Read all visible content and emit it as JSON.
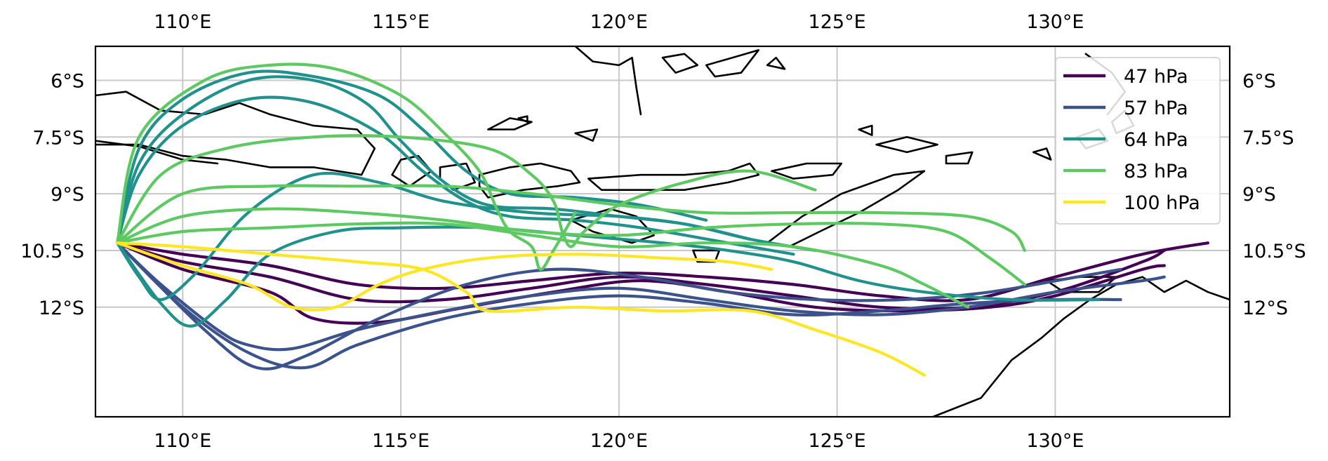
{
  "chart_data": {
    "type": "line",
    "map_extent": {
      "lon": [
        108.0,
        134.0
      ],
      "lat": [
        -14.9,
        -5.1
      ]
    },
    "grid": true,
    "legend_position": "top-right",
    "x_ticks": [
      {
        "value": 110,
        "label": "110°E"
      },
      {
        "value": 115,
        "label": "115°E"
      },
      {
        "value": 120,
        "label": "120°E"
      },
      {
        "value": 125,
        "label": "125°E"
      },
      {
        "value": 130,
        "label": "130°E"
      }
    ],
    "y_ticks": [
      {
        "value": -6.0,
        "label": "6°S"
      },
      {
        "value": -7.5,
        "label": "7.5°S"
      },
      {
        "value": -9.0,
        "label": "9°S"
      },
      {
        "value": -10.5,
        "label": "10.5°S"
      },
      {
        "value": -12.0,
        "label": "12°S"
      }
    ],
    "series": [
      {
        "name": "47 hPa",
        "color": "#440154",
        "trajectories": [
          [
            [
              108.5,
              -10.3
            ],
            [
              110,
              -10.6
            ],
            [
              112,
              -10.9
            ],
            [
              114,
              -11.4
            ],
            [
              116,
              -11.5
            ],
            [
              118,
              -11.3
            ],
            [
              120,
              -11.1
            ],
            [
              122,
              -11.2
            ],
            [
              124,
              -11.4
            ],
            [
              126,
              -11.7
            ],
            [
              128,
              -11.8
            ],
            [
              130,
              -11.2
            ],
            [
              132,
              -10.6
            ],
            [
              133.5,
              -10.3
            ]
          ],
          [
            [
              108.5,
              -10.3
            ],
            [
              110,
              -10.8
            ],
            [
              112,
              -11.2
            ],
            [
              114,
              -11.8
            ],
            [
              116,
              -11.8
            ],
            [
              118,
              -11.5
            ],
            [
              120,
              -11.2
            ],
            [
              122,
              -11.4
            ],
            [
              124,
              -11.7
            ],
            [
              126,
              -12.0
            ],
            [
              128,
              -12.0
            ],
            [
              130,
              -11.6
            ],
            [
              132,
              -10.8
            ],
            [
              132.5,
              -10.5
            ]
          ],
          [
            [
              108.5,
              -10.3
            ],
            [
              110,
              -11.0
            ],
            [
              112,
              -11.6
            ],
            [
              113,
              -12.3
            ],
            [
              114.5,
              -12.4
            ],
            [
              116.5,
              -12.0
            ],
            [
              118.5,
              -11.6
            ],
            [
              120.5,
              -11.3
            ],
            [
              122.5,
              -11.6
            ],
            [
              124.5,
              -12.0
            ],
            [
              126.5,
              -12.1
            ],
            [
              128.5,
              -12.0
            ],
            [
              130,
              -11.7
            ],
            [
              132,
              -11.0
            ],
            [
              132.5,
              -10.9
            ]
          ]
        ]
      },
      {
        "name": "57 hPa",
        "color": "#3b528b",
        "trajectories": [
          [
            [
              108.5,
              -10.3
            ],
            [
              109.5,
              -11.4
            ],
            [
              110.8,
              -12.6
            ],
            [
              111.5,
              -13.0
            ],
            [
              112.5,
              -13.1
            ],
            [
              114,
              -12.6
            ],
            [
              116,
              -12.1
            ],
            [
              118,
              -11.7
            ],
            [
              120,
              -11.5
            ],
            [
              122,
              -11.8
            ],
            [
              124,
              -12.1
            ],
            [
              126,
              -12.2
            ],
            [
              128,
              -12.0
            ],
            [
              130,
              -11.6
            ],
            [
              132,
              -11.3
            ],
            [
              132.5,
              -11.2
            ]
          ],
          [
            [
              108.5,
              -10.3
            ],
            [
              110,
              -12.0
            ],
            [
              111.5,
              -13.2
            ],
            [
              112.8,
              -13.6
            ],
            [
              114,
              -13.0
            ],
            [
              116,
              -12.3
            ],
            [
              118,
              -11.9
            ],
            [
              120,
              -11.7
            ],
            [
              122,
              -11.9
            ],
            [
              124,
              -12.2
            ],
            [
              126,
              -12.1
            ],
            [
              128,
              -11.9
            ],
            [
              130,
              -11.8
            ],
            [
              131.5,
              -11.8
            ]
          ],
          [
            [
              108.5,
              -10.3
            ],
            [
              110.5,
              -12.6
            ],
            [
              111.7,
              -13.6
            ],
            [
              112.8,
              -13.3
            ],
            [
              114.5,
              -12.3
            ],
            [
              116.5,
              -11.4
            ],
            [
              118.5,
              -11.0
            ],
            [
              120.5,
              -11.2
            ],
            [
              122.5,
              -11.6
            ],
            [
              124.5,
              -11.8
            ],
            [
              126.5,
              -11.8
            ],
            [
              128.5,
              -11.6
            ],
            [
              130.5,
              -11.2
            ],
            [
              131.5,
              -11.0
            ]
          ]
        ]
      },
      {
        "name": "64 hPa",
        "color": "#21918c",
        "trajectories": [
          [
            [
              108.5,
              -10.3
            ],
            [
              109.5,
              -11.9
            ],
            [
              110.2,
              -12.5
            ],
            [
              111,
              -11.8
            ],
            [
              112,
              -10.6
            ],
            [
              113.5,
              -10.0
            ],
            [
              115,
              -9.9
            ],
            [
              117,
              -9.9
            ],
            [
              119,
              -10.1
            ],
            [
              121,
              -10.3
            ],
            [
              122.5,
              -10.5
            ],
            [
              124,
              -10.8
            ],
            [
              125.5,
              -11.3
            ],
            [
              127,
              -11.6
            ],
            [
              129,
              -11.8
            ],
            [
              131,
              -11.8
            ]
          ],
          [
            [
              108.5,
              -10.3
            ],
            [
              109,
              -11.2
            ],
            [
              109.5,
              -11.8
            ],
            [
              110.3,
              -11.1
            ],
            [
              111.5,
              -9.5
            ],
            [
              113,
              -8.5
            ],
            [
              114.5,
              -8.7
            ],
            [
              116,
              -9.2
            ],
            [
              118,
              -9.5
            ],
            [
              120,
              -9.6
            ],
            [
              121.5,
              -9.8
            ],
            [
              123,
              -10.2
            ],
            [
              124.5,
              -10.5
            ]
          ],
          [
            [
              108.5,
              -10.3
            ],
            [
              109,
              -8.5
            ],
            [
              110,
              -7.2
            ],
            [
              111.5,
              -6.5
            ],
            [
              113,
              -6.6
            ],
            [
              114.5,
              -7.4
            ],
            [
              115.5,
              -8.4
            ],
            [
              116.5,
              -9.2
            ],
            [
              117.5,
              -9.6
            ],
            [
              119,
              -9.7
            ],
            [
              120.5,
              -9.9
            ],
            [
              122.5,
              -10.3
            ],
            [
              124,
              -10.6
            ]
          ],
          [
            [
              108.5,
              -10.3
            ],
            [
              109,
              -8.2
            ],
            [
              110,
              -6.9
            ],
            [
              111.5,
              -6.0
            ],
            [
              113,
              -6.0
            ],
            [
              114.2,
              -6.6
            ],
            [
              115,
              -7.6
            ],
            [
              116,
              -8.7
            ],
            [
              117,
              -9.3
            ],
            [
              118.5,
              -9.4
            ],
            [
              120,
              -9.6
            ],
            [
              121.5,
              -9.8
            ],
            [
              123,
              -10.2
            ]
          ],
          [
            [
              108.5,
              -10.3
            ],
            [
              109,
              -7.8
            ],
            [
              110,
              -6.5
            ],
            [
              111.5,
              -5.8
            ],
            [
              113,
              -5.9
            ],
            [
              114.5,
              -6.4
            ],
            [
              115.5,
              -7.3
            ],
            [
              116.5,
              -8.4
            ],
            [
              117.5,
              -9.0
            ],
            [
              119,
              -9.1
            ],
            [
              120.5,
              -9.3
            ],
            [
              122,
              -9.7
            ]
          ]
        ]
      },
      {
        "name": "83 hPa",
        "color": "#5ec962",
        "trajectories": [
          [
            [
              108.5,
              -10.3
            ],
            [
              109,
              -7.5
            ],
            [
              110.5,
              -6.0
            ],
            [
              112,
              -5.6
            ],
            [
              113.5,
              -5.7
            ],
            [
              115,
              -6.4
            ],
            [
              116,
              -7.4
            ],
            [
              116.8,
              -8.4
            ],
            [
              117.2,
              -9.4
            ],
            [
              117.5,
              -10.0
            ],
            [
              118,
              -10.4
            ],
            [
              118.2,
              -11.0
            ],
            [
              118.5,
              -10.5
            ],
            [
              119,
              -9.5
            ]
          ],
          [
            [
              108.5,
              -10.3
            ],
            [
              109.5,
              -8.5
            ],
            [
              111,
              -7.8
            ],
            [
              113,
              -7.5
            ],
            [
              115,
              -7.5
            ],
            [
              117,
              -7.8
            ],
            [
              118,
              -8.5
            ],
            [
              118.5,
              -9.2
            ],
            [
              118.7,
              -10.0
            ],
            [
              118.9,
              -10.4
            ],
            [
              119.2,
              -10.0
            ],
            [
              120,
              -9.3
            ],
            [
              121.5,
              -8.7
            ],
            [
              123,
              -8.4
            ],
            [
              124.5,
              -8.9
            ]
          ],
          [
            [
              108.5,
              -10.3
            ],
            [
              110,
              -9.0
            ],
            [
              112,
              -8.8
            ],
            [
              114,
              -8.8
            ],
            [
              116,
              -8.8
            ],
            [
              118,
              -9.0
            ],
            [
              120,
              -9.3
            ],
            [
              122,
              -9.5
            ],
            [
              124,
              -9.5
            ],
            [
              126,
              -9.5
            ],
            [
              128,
              -9.6
            ],
            [
              129,
              -10.0
            ],
            [
              129.3,
              -10.5
            ]
          ],
          [
            [
              108.5,
              -10.3
            ],
            [
              110,
              -9.6
            ],
            [
              112,
              -9.4
            ],
            [
              114,
              -9.5
            ],
            [
              116,
              -9.7
            ],
            [
              118,
              -10.0
            ],
            [
              120,
              -10.1
            ],
            [
              122,
              -9.9
            ],
            [
              124,
              -9.8
            ],
            [
              126,
              -9.8
            ],
            [
              127.5,
              -10.0
            ],
            [
              128.5,
              -10.7
            ],
            [
              129.3,
              -11.4
            ]
          ],
          [
            [
              108.5,
              -10.3
            ],
            [
              110,
              -10.0
            ],
            [
              112,
              -9.9
            ],
            [
              114,
              -9.8
            ],
            [
              116,
              -9.8
            ],
            [
              118,
              -10.1
            ],
            [
              120,
              -10.4
            ],
            [
              122,
              -10.3
            ],
            [
              124,
              -10.4
            ],
            [
              126,
              -10.9
            ],
            [
              127,
              -11.4
            ],
            [
              128,
              -12.0
            ]
          ]
        ]
      },
      {
        "name": "100 hPa",
        "color": "#fde725",
        "trajectories": [
          [
            [
              108.5,
              -10.3
            ],
            [
              110,
              -10.9
            ],
            [
              111.5,
              -11.4
            ],
            [
              112.5,
              -12.0
            ],
            [
              113.5,
              -12.0
            ],
            [
              114.5,
              -11.4
            ],
            [
              115.5,
              -11.0
            ],
            [
              117,
              -10.7
            ],
            [
              119,
              -10.6
            ],
            [
              121,
              -10.7
            ],
            [
              122.5,
              -10.8
            ],
            [
              123.5,
              -11.0
            ]
          ],
          [
            [
              108.5,
              -10.3
            ],
            [
              110,
              -10.4
            ],
            [
              112,
              -10.6
            ],
            [
              114,
              -10.8
            ],
            [
              115.5,
              -11.0
            ],
            [
              116.5,
              -11.6
            ],
            [
              117,
              -12.1
            ],
            [
              119,
              -12.0
            ],
            [
              121,
              -12.1
            ],
            [
              123,
              -12.1
            ],
            [
              124.5,
              -12.6
            ],
            [
              126,
              -13.2
            ],
            [
              127,
              -13.8
            ]
          ]
        ]
      }
    ]
  }
}
